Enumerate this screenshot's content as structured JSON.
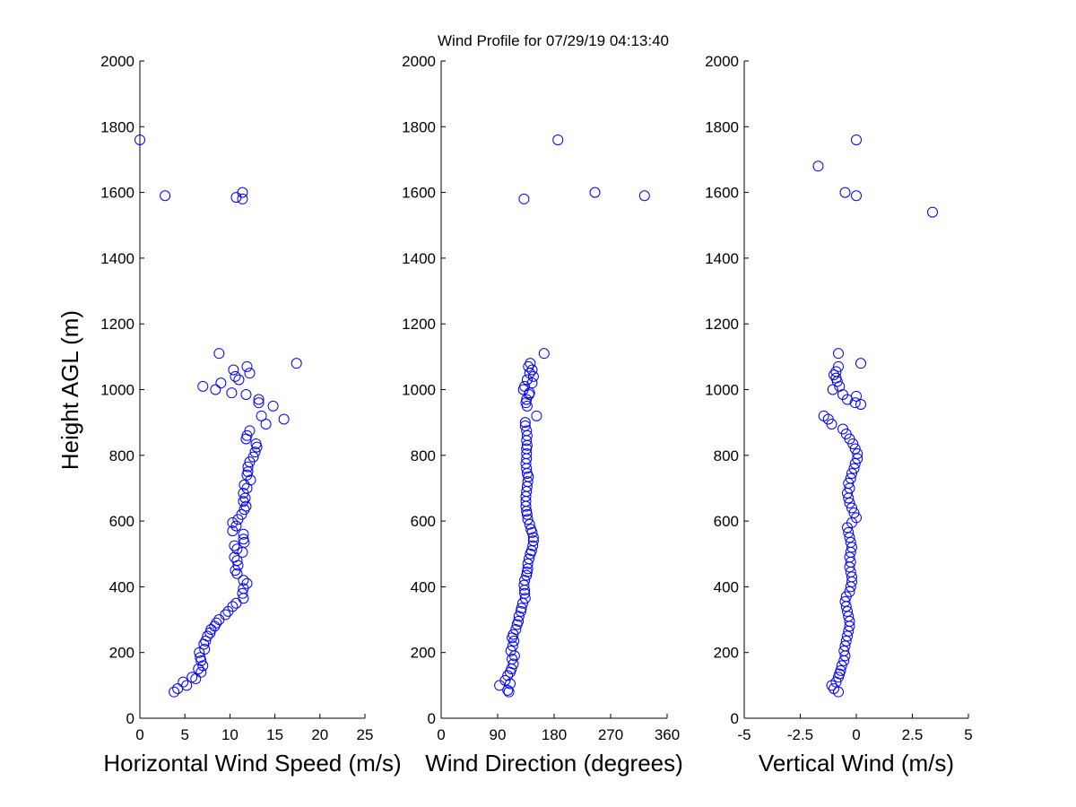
{
  "page": {
    "title": "Wind Profile for  07/29/19 04:13:40",
    "ylabel": "Height AGL (m)",
    "marker_color": "#0000ff",
    "background": "#ffffff"
  },
  "chart_data": [
    {
      "type": "scatter",
      "xlabel": "Horizontal Wind Speed (m/s)",
      "ylabel": "Height AGL (m)",
      "xlim": [
        0,
        25
      ],
      "ylim": [
        0,
        2000
      ],
      "xticks": [
        "0",
        "5",
        "10",
        "15",
        "20",
        "25"
      ],
      "yticks": [
        "0",
        "200",
        "400",
        "600",
        "800",
        "1000",
        "1200",
        "1400",
        "1600",
        "1800",
        "2000"
      ],
      "grid": false,
      "points": [
        [
          3.8,
          80
        ],
        [
          4.2,
          90
        ],
        [
          5.2,
          100
        ],
        [
          4.8,
          110
        ],
        [
          6.2,
          120
        ],
        [
          5.8,
          125
        ],
        [
          6.8,
          140
        ],
        [
          6.5,
          150
        ],
        [
          7,
          160
        ],
        [
          6.8,
          175
        ],
        [
          6.7,
          185
        ],
        [
          6.6,
          200
        ],
        [
          7.2,
          210
        ],
        [
          7.1,
          225
        ],
        [
          7.3,
          235
        ],
        [
          7.5,
          250
        ],
        [
          7.8,
          260
        ],
        [
          7.9,
          270
        ],
        [
          8.3,
          280
        ],
        [
          8.5,
          290
        ],
        [
          8.8,
          300
        ],
        [
          9.5,
          315
        ],
        [
          9.8,
          325
        ],
        [
          10.3,
          340
        ],
        [
          10.7,
          350
        ],
        [
          11.5,
          365
        ],
        [
          11.4,
          380
        ],
        [
          11.5,
          395
        ],
        [
          11.9,
          410
        ],
        [
          11.5,
          420
        ],
        [
          10.8,
          440
        ],
        [
          10.6,
          450
        ],
        [
          10.9,
          465
        ],
        [
          10.8,
          480
        ],
        [
          10.5,
          490
        ],
        [
          11.4,
          505
        ],
        [
          10.8,
          515
        ],
        [
          10.5,
          525
        ],
        [
          11.6,
          535
        ],
        [
          11.5,
          545
        ],
        [
          11.5,
          560
        ],
        [
          10.3,
          570
        ],
        [
          10.7,
          585
        ],
        [
          10.3,
          595
        ],
        [
          10.9,
          605
        ],
        [
          11.3,
          620
        ],
        [
          11.6,
          635
        ],
        [
          11.8,
          645
        ],
        [
          11.5,
          660
        ],
        [
          11.7,
          670
        ],
        [
          11.5,
          685
        ],
        [
          11.9,
          700
        ],
        [
          11.6,
          710
        ],
        [
          12.3,
          725
        ],
        [
          11.9,
          740
        ],
        [
          12,
          750
        ],
        [
          12,
          765
        ],
        [
          12.2,
          780
        ],
        [
          12.6,
          795
        ],
        [
          12.8,
          810
        ],
        [
          13,
          825
        ],
        [
          12.9,
          835
        ],
        [
          11.8,
          850
        ],
        [
          11.9,
          860
        ],
        [
          12.2,
          875
        ],
        [
          14,
          895
        ],
        [
          16,
          910
        ],
        [
          13.5,
          920
        ],
        [
          14.8,
          950
        ],
        [
          13.2,
          960
        ],
        [
          13.2,
          970
        ],
        [
          11.8,
          985
        ],
        [
          10.2,
          990
        ],
        [
          8.4,
          1000
        ],
        [
          7,
          1010
        ],
        [
          9,
          1020
        ],
        [
          11,
          1030
        ],
        [
          10.6,
          1040
        ],
        [
          12.2,
          1050
        ],
        [
          10.4,
          1060
        ],
        [
          11.9,
          1070
        ],
        [
          17.4,
          1080
        ],
        [
          8.8,
          1110
        ],
        [
          11.4,
          1580
        ],
        [
          2.8,
          1590
        ],
        [
          10.7,
          1585
        ],
        [
          11.4,
          1600
        ],
        [
          0,
          1760
        ]
      ]
    },
    {
      "type": "scatter",
      "xlabel": "Wind Direction (degrees)",
      "ylabel": "",
      "xlim": [
        0,
        360
      ],
      "ylim": [
        0,
        2000
      ],
      "xticks": [
        "0",
        "90",
        "180",
        "270",
        "360"
      ],
      "yticks": [
        "0",
        "200",
        "400",
        "600",
        "800",
        "1000",
        "1200",
        "1400",
        "1600",
        "1800",
        "2000"
      ],
      "grid": false,
      "points": [
        [
          108,
          80
        ],
        [
          106,
          85
        ],
        [
          93,
          100
        ],
        [
          110,
          105
        ],
        [
          102,
          115
        ],
        [
          106,
          130
        ],
        [
          110,
          140
        ],
        [
          112,
          150
        ],
        [
          115,
          165
        ],
        [
          113,
          180
        ],
        [
          117,
          190
        ],
        [
          111,
          205
        ],
        [
          114,
          220
        ],
        [
          116,
          235
        ],
        [
          113,
          245
        ],
        [
          115,
          255
        ],
        [
          119,
          270
        ],
        [
          121,
          285
        ],
        [
          123,
          295
        ],
        [
          124,
          310
        ],
        [
          127,
          325
        ],
        [
          128,
          335
        ],
        [
          130,
          350
        ],
        [
          134,
          365
        ],
        [
          133,
          380
        ],
        [
          133,
          390
        ],
        [
          132,
          405
        ],
        [
          133,
          420
        ],
        [
          136,
          435
        ],
        [
          137,
          445
        ],
        [
          138,
          455
        ],
        [
          138,
          470
        ],
        [
          140,
          485
        ],
        [
          142,
          500
        ],
        [
          144,
          510
        ],
        [
          146,
          525
        ],
        [
          147,
          540
        ],
        [
          147,
          550
        ],
        [
          145,
          565
        ],
        [
          143,
          575
        ],
        [
          141,
          590
        ],
        [
          138,
          605
        ],
        [
          137,
          620
        ],
        [
          136,
          630
        ],
        [
          135,
          645
        ],
        [
          135,
          660
        ],
        [
          135,
          675
        ],
        [
          136,
          690
        ],
        [
          137,
          705
        ],
        [
          138,
          720
        ],
        [
          139,
          735
        ],
        [
          137,
          745
        ],
        [
          136,
          760
        ],
        [
          135,
          775
        ],
        [
          136,
          790
        ],
        [
          136,
          805
        ],
        [
          136,
          820
        ],
        [
          137,
          830
        ],
        [
          136,
          845
        ],
        [
          137,
          860
        ],
        [
          136,
          875
        ],
        [
          134,
          890
        ],
        [
          134,
          900
        ],
        [
          152,
          920
        ],
        [
          137,
          950
        ],
        [
          135,
          960
        ],
        [
          136,
          970
        ],
        [
          140,
          985
        ],
        [
          141,
          990
        ],
        [
          131,
          1000
        ],
        [
          133,
          1010
        ],
        [
          145,
          1020
        ],
        [
          137,
          1030
        ],
        [
          147,
          1040
        ],
        [
          141,
          1050
        ],
        [
          145,
          1060
        ],
        [
          139,
          1070
        ],
        [
          142,
          1080
        ],
        [
          164,
          1110
        ],
        [
          132,
          1580
        ],
        [
          324,
          1590
        ],
        [
          245,
          1600
        ],
        [
          186,
          1760
        ]
      ]
    },
    {
      "type": "scatter",
      "xlabel": "Vertical Wind (m/s)",
      "ylabel": "",
      "xlim": [
        -5,
        5
      ],
      "ylim": [
        0,
        2000
      ],
      "xticks": [
        "-5",
        "-2.5",
        "0",
        "2.5",
        "5"
      ],
      "yticks": [
        "0",
        "200",
        "400",
        "600",
        "800",
        "1000",
        "1200",
        "1400",
        "1600",
        "1800",
        "2000"
      ],
      "grid": false,
      "points": [
        [
          -0.8,
          80
        ],
        [
          -1.0,
          90
        ],
        [
          -1.1,
          100
        ],
        [
          -0.9,
          110
        ],
        [
          -0.8,
          125
        ],
        [
          -0.75,
          135
        ],
        [
          -0.7,
          145
        ],
        [
          -0.65,
          160
        ],
        [
          -0.55,
          175
        ],
        [
          -0.5,
          190
        ],
        [
          -0.55,
          205
        ],
        [
          -0.5,
          220
        ],
        [
          -0.45,
          235
        ],
        [
          -0.4,
          250
        ],
        [
          -0.35,
          265
        ],
        [
          -0.3,
          280
        ],
        [
          -0.3,
          295
        ],
        [
          -0.35,
          310
        ],
        [
          -0.4,
          325
        ],
        [
          -0.45,
          340
        ],
        [
          -0.5,
          355
        ],
        [
          -0.45,
          370
        ],
        [
          -0.3,
          385
        ],
        [
          -0.25,
          400
        ],
        [
          -0.2,
          415
        ],
        [
          -0.2,
          430
        ],
        [
          -0.25,
          445
        ],
        [
          -0.3,
          460
        ],
        [
          -0.25,
          475
        ],
        [
          -0.3,
          490
        ],
        [
          -0.25,
          505
        ],
        [
          -0.2,
          520
        ],
        [
          -0.25,
          535
        ],
        [
          -0.3,
          550
        ],
        [
          -0.35,
          565
        ],
        [
          -0.4,
          580
        ],
        [
          -0.2,
          595
        ],
        [
          0,
          610
        ],
        [
          -0.1,
          625
        ],
        [
          -0.2,
          640
        ],
        [
          -0.3,
          655
        ],
        [
          -0.35,
          670
        ],
        [
          -0.4,
          685
        ],
        [
          -0.3,
          700
        ],
        [
          -0.35,
          715
        ],
        [
          -0.25,
          730
        ],
        [
          -0.2,
          745
        ],
        [
          -0.1,
          760
        ],
        [
          -0.05,
          775
        ],
        [
          0.05,
          790
        ],
        [
          0.05,
          805
        ],
        [
          -0.05,
          820
        ],
        [
          -0.15,
          835
        ],
        [
          -0.3,
          850
        ],
        [
          -0.45,
          865
        ],
        [
          -0.6,
          880
        ],
        [
          -1.1,
          895
        ],
        [
          -1.25,
          910
        ],
        [
          -1.45,
          920
        ],
        [
          0.2,
          955
        ],
        [
          -0.05,
          960
        ],
        [
          -0.4,
          970
        ],
        [
          0.0,
          980
        ],
        [
          -0.6,
          985
        ],
        [
          -1.05,
          1000
        ],
        [
          -0.75,
          1010
        ],
        [
          -0.85,
          1025
        ],
        [
          -0.9,
          1035
        ],
        [
          -1.0,
          1045
        ],
        [
          -0.9,
          1055
        ],
        [
          -0.8,
          1070
        ],
        [
          0.2,
          1080
        ],
        [
          -0.8,
          1110
        ],
        [
          3.4,
          1540
        ],
        [
          0,
          1590
        ],
        [
          -0.5,
          1600
        ],
        [
          -1.7,
          1680
        ],
        [
          0,
          1760
        ]
      ]
    }
  ]
}
